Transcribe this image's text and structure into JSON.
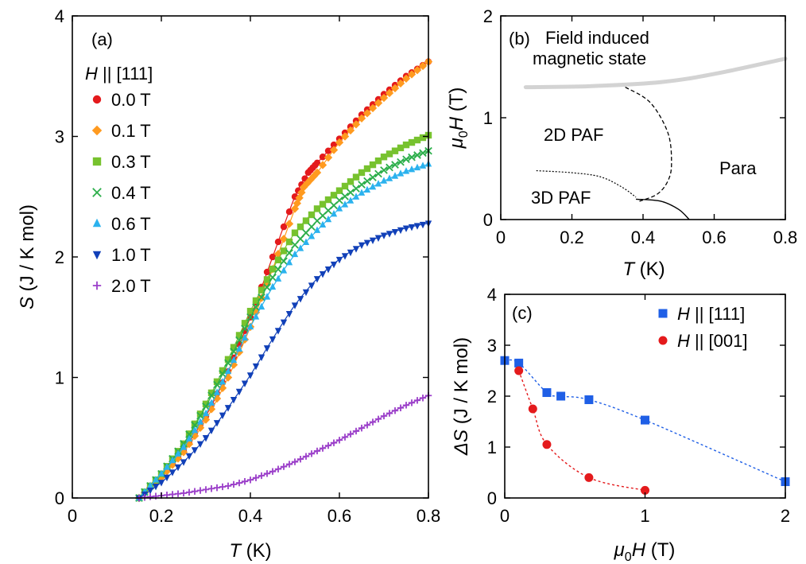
{
  "chart_data": [
    {
      "panel": "(a)",
      "type": "scatter",
      "xlabel_var": "T",
      "xlabel_unit": " (K)",
      "ylabel_var": "S",
      "ylabel_unit": " (J / K mol)",
      "xlim": [
        0,
        0.8
      ],
      "ylim": [
        0,
        4
      ],
      "xticks": [
        "0",
        "0.2",
        "0.4",
        "0.6",
        "0.8"
      ],
      "yticks": [
        "0",
        "1",
        "2",
        "3",
        "4"
      ],
      "legend_title_var": "H",
      "legend_title_rest": " || [111]",
      "legend_position": "top-left",
      "series": [
        {
          "name": "0.0 T",
          "color": "#e41a1c",
          "marker": "circle",
          "x": [
            0.15,
            0.2,
            0.25,
            0.3,
            0.35,
            0.4,
            0.45,
            0.5,
            0.53,
            0.55,
            0.6,
            0.65,
            0.7,
            0.75,
            0.8
          ],
          "y": [
            0.0,
            0.18,
            0.4,
            0.68,
            1.05,
            1.5,
            2.0,
            2.5,
            2.7,
            2.78,
            2.98,
            3.18,
            3.35,
            3.5,
            3.62
          ]
        },
        {
          "name": "0.1 T",
          "color": "#ff9a1f",
          "marker": "diamond",
          "x": [
            0.15,
            0.2,
            0.25,
            0.3,
            0.35,
            0.4,
            0.45,
            0.5,
            0.52,
            0.55,
            0.6,
            0.65,
            0.7,
            0.75,
            0.8
          ],
          "y": [
            0.0,
            0.17,
            0.38,
            0.65,
            1.0,
            1.42,
            1.9,
            2.4,
            2.58,
            2.7,
            2.95,
            3.15,
            3.32,
            3.48,
            3.62
          ]
        },
        {
          "name": "0.3 T",
          "color": "#77c22e",
          "marker": "square",
          "x": [
            0.15,
            0.2,
            0.25,
            0.3,
            0.35,
            0.4,
            0.45,
            0.5,
            0.55,
            0.6,
            0.65,
            0.7,
            0.75,
            0.8
          ],
          "y": [
            0.0,
            0.2,
            0.45,
            0.78,
            1.15,
            1.55,
            1.9,
            2.2,
            2.4,
            2.55,
            2.7,
            2.83,
            2.93,
            3.01
          ]
        },
        {
          "name": "0.4 T",
          "color": "#2cae4a",
          "marker": "cross",
          "x": [
            0.15,
            0.2,
            0.25,
            0.3,
            0.35,
            0.4,
            0.45,
            0.5,
            0.55,
            0.6,
            0.65,
            0.7,
            0.75,
            0.8
          ],
          "y": [
            0.0,
            0.2,
            0.45,
            0.76,
            1.12,
            1.5,
            1.83,
            2.1,
            2.3,
            2.47,
            2.6,
            2.72,
            2.81,
            2.88
          ]
        },
        {
          "name": "0.6 T",
          "color": "#2bb2ee",
          "marker": "triangle-up",
          "x": [
            0.15,
            0.2,
            0.25,
            0.3,
            0.35,
            0.4,
            0.45,
            0.5,
            0.55,
            0.6,
            0.65,
            0.7,
            0.75,
            0.8
          ],
          "y": [
            0.0,
            0.2,
            0.42,
            0.7,
            1.05,
            1.42,
            1.75,
            2.02,
            2.22,
            2.4,
            2.53,
            2.63,
            2.71,
            2.77
          ]
        },
        {
          "name": "1.0 T",
          "color": "#1140b8",
          "marker": "triangle-down",
          "x": [
            0.15,
            0.2,
            0.25,
            0.3,
            0.35,
            0.4,
            0.45,
            0.5,
            0.55,
            0.6,
            0.65,
            0.7,
            0.75,
            0.8
          ],
          "y": [
            0.0,
            0.13,
            0.3,
            0.5,
            0.75,
            1.02,
            1.32,
            1.6,
            1.82,
            1.98,
            2.1,
            2.18,
            2.24,
            2.28
          ]
        },
        {
          "name": "2.0 T",
          "color": "#9b3fc9",
          "marker": "plus",
          "x": [
            0.15,
            0.2,
            0.25,
            0.3,
            0.35,
            0.4,
            0.45,
            0.5,
            0.55,
            0.6,
            0.65,
            0.7,
            0.75,
            0.8
          ],
          "y": [
            0.0,
            0.02,
            0.04,
            0.07,
            0.1,
            0.15,
            0.22,
            0.3,
            0.39,
            0.48,
            0.58,
            0.68,
            0.77,
            0.85
          ]
        }
      ]
    },
    {
      "panel": "(b)",
      "type": "line",
      "xlabel_var": "T",
      "xlabel_unit": " (K)",
      "ylabel_prefix": "μ",
      "ylabel_sub": "0",
      "ylabel_var": "H",
      "ylabel_unit": " (T)",
      "xlim": [
        0,
        0.8
      ],
      "ylim": [
        0,
        2
      ],
      "xticks": [
        "0",
        "0.2",
        "0.4",
        "0.6",
        "0.8"
      ],
      "yticks": [
        "0",
        "1",
        "2"
      ],
      "annotations": {
        "field_induced_line1": "Field induced",
        "field_induced_line2": "magnetic state",
        "paf2d": "2D PAF",
        "paf3d": "3D PAF",
        "para": "Para"
      },
      "boundaries": [
        {
          "style": "thick-gray",
          "color": "#d3d3d3",
          "x": [
            0.07,
            0.25,
            0.45,
            0.6,
            0.8
          ],
          "y": [
            1.3,
            1.31,
            1.35,
            1.43,
            1.58
          ]
        },
        {
          "style": "dashed",
          "color": "#000000",
          "x": [
            0.35,
            0.42,
            0.47,
            0.48,
            0.47,
            0.44,
            0.39
          ],
          "y": [
            1.3,
            1.15,
            0.85,
            0.55,
            0.38,
            0.25,
            0.18
          ]
        },
        {
          "style": "dotted",
          "color": "#000000",
          "x": [
            0.1,
            0.2,
            0.28,
            0.34,
            0.38
          ],
          "y": [
            0.48,
            0.46,
            0.42,
            0.32,
            0.22
          ]
        },
        {
          "style": "solid",
          "color": "#000000",
          "x": [
            0.38,
            0.45,
            0.5,
            0.53
          ],
          "y": [
            0.2,
            0.18,
            0.1,
            0.0
          ]
        }
      ]
    },
    {
      "panel": "(c)",
      "type": "scatter",
      "xlabel_prefix": "μ",
      "xlabel_sub": "0",
      "xlabel_var": "H",
      "xlabel_unit": " (T)",
      "ylabel_prefix": "Δ",
      "ylabel_var": "S",
      "ylabel_unit": " (J / K mol)",
      "xlim": [
        0,
        2
      ],
      "ylim": [
        0,
        4
      ],
      "xticks": [
        "0",
        "1",
        "2"
      ],
      "yticks": [
        "0",
        "1",
        "2",
        "3",
        "4"
      ],
      "legend_position": "top-right",
      "series": [
        {
          "name_var": "H",
          "name_rest": " || [111]",
          "color": "#1f5fe6",
          "marker": "square",
          "x": [
            0.0,
            0.1,
            0.3,
            0.4,
            0.6,
            1.0,
            2.0
          ],
          "y": [
            2.7,
            2.65,
            2.07,
            2.0,
            1.93,
            1.53,
            0.32
          ]
        },
        {
          "name_var": "H",
          "name_rest": " || [001]",
          "color": "#e41a1c",
          "marker": "circle",
          "x": [
            0.1,
            0.2,
            0.3,
            0.6,
            1.0
          ],
          "y": [
            2.5,
            1.75,
            1.05,
            0.4,
            0.15
          ]
        }
      ]
    }
  ]
}
